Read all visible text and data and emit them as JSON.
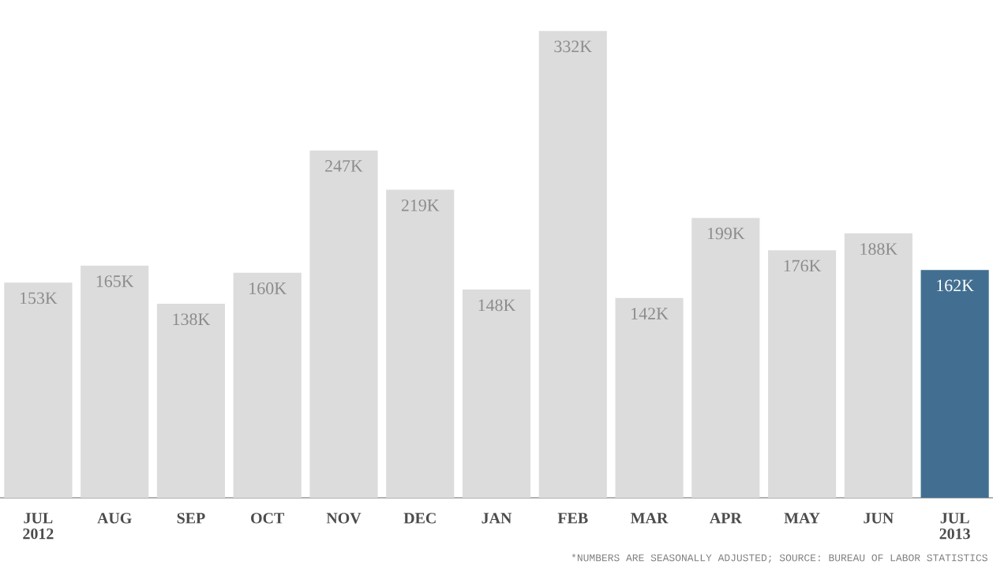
{
  "chart_data": {
    "type": "bar",
    "categories": [
      "JUL 2012",
      "AUG",
      "SEP",
      "OCT",
      "NOV",
      "DEC",
      "JAN",
      "FEB",
      "MAR",
      "APR",
      "MAY",
      "JUN",
      "JUL 2013"
    ],
    "values": [
      153,
      165,
      138,
      160,
      247,
      219,
      148,
      332,
      142,
      199,
      176,
      188,
      162
    ],
    "value_labels": [
      "153K",
      "165K",
      "138K",
      "160K",
      "247K",
      "219K",
      "148K",
      "332K",
      "142K",
      "199K",
      "176K",
      "188K",
      "162K"
    ],
    "colors": [
      "#dcdcdc",
      "#dcdcdc",
      "#dcdcdc",
      "#dcdcdc",
      "#dcdcdc",
      "#dcdcdc",
      "#dcdcdc",
      "#dcdcdc",
      "#dcdcdc",
      "#dcdcdc",
      "#dcdcdc",
      "#dcdcdc",
      "#426f91"
    ],
    "annotations": [
      "*NUMBERS ARE SEASONALLY ADJUSTED; SOURCE: BUREAU OF LABOR STATISTICS"
    ]
  }
}
